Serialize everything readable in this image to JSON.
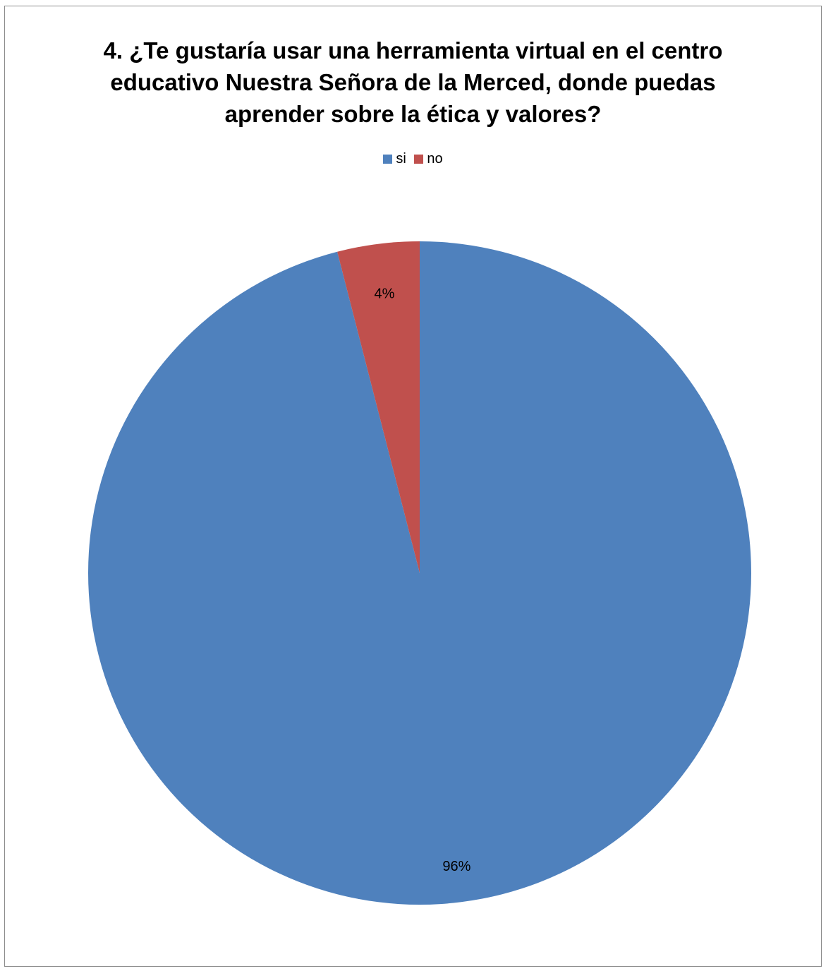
{
  "chart_data": {
    "type": "pie",
    "title_lines": [
      "4. ¿Te gustaría usar una herramienta virtual en el centro",
      "educativo Nuestra Señora de la Merced, donde puedas",
      "aprender sobre la ética y valores?"
    ],
    "categories": [
      "si",
      "no"
    ],
    "values": [
      96,
      4
    ],
    "data_labels": [
      "96%",
      "4%"
    ],
    "colors": [
      "#4f81bd",
      "#c0504d"
    ],
    "legend_position": "top"
  }
}
